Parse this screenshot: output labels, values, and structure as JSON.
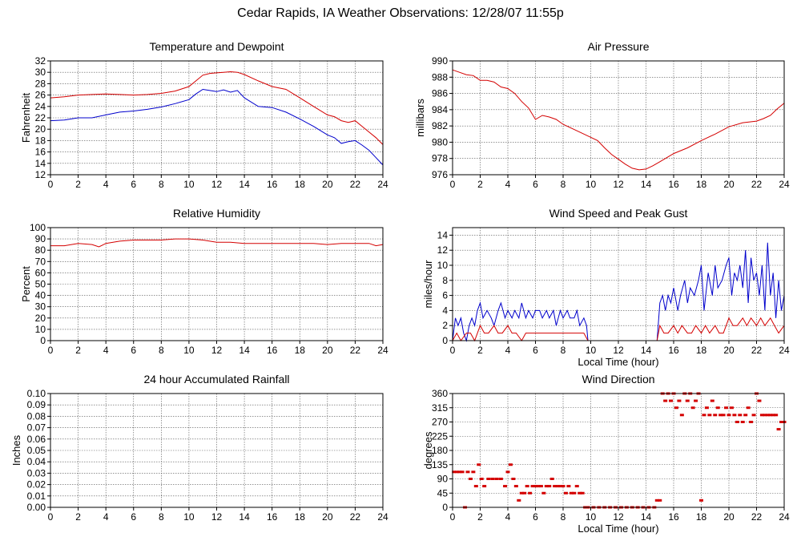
{
  "page": {
    "title": "Cedar Rapids, IA Weather Observations: 12/28/07 11:55p"
  },
  "colors": {
    "red": "#d40000",
    "blue": "#0000cc"
  },
  "chart_data": [
    {
      "id": "temp",
      "type": "line",
      "title": "Temperature and Dewpoint",
      "xlabel": "",
      "ylabel": "Fahrenheit",
      "xlim": [
        0,
        24
      ],
      "ylim": [
        12,
        32
      ],
      "xticks": [
        0,
        2,
        4,
        6,
        8,
        10,
        12,
        14,
        16,
        18,
        20,
        22,
        24
      ],
      "yticks": [
        12,
        14,
        16,
        18,
        20,
        22,
        24,
        26,
        28,
        30,
        32
      ],
      "ytick_labels": [
        "12",
        "14",
        "16",
        "18",
        "20",
        "22",
        "24",
        "26",
        "28",
        "30",
        "32"
      ],
      "grid": true,
      "series": [
        {
          "color": "#d40000",
          "x": [
            0,
            1,
            2,
            3,
            4,
            5,
            6,
            7,
            8,
            9,
            10,
            10.5,
            11,
            11.5,
            12,
            12.5,
            13,
            13.5,
            14,
            15,
            16,
            17,
            18,
            19,
            20,
            20.5,
            21,
            21.5,
            22,
            22.5,
            23,
            23.5,
            24
          ],
          "y": [
            25.5,
            25.7,
            26,
            26.1,
            26.2,
            26.1,
            26,
            26.1,
            26.3,
            26.7,
            27.5,
            28.5,
            29.5,
            29.8,
            29.9,
            30,
            30.1,
            30,
            29.6,
            28.5,
            27.5,
            27,
            25.5,
            24,
            22.5,
            22.2,
            21.5,
            21.2,
            21.5,
            20.5,
            19.5,
            18.5,
            17.3
          ]
        },
        {
          "color": "#0000cc",
          "x": [
            0,
            1,
            2,
            3,
            4,
            5,
            6,
            7,
            8,
            9,
            10,
            10.5,
            11,
            11.5,
            12,
            12.5,
            13,
            13.5,
            14,
            15,
            16,
            17,
            18,
            19,
            20,
            20.5,
            21,
            21.5,
            22,
            22.5,
            23,
            23.5,
            24
          ],
          "y": [
            21.5,
            21.6,
            22,
            22,
            22.5,
            23,
            23.2,
            23.5,
            23.9,
            24.5,
            25.2,
            26.2,
            27,
            26.8,
            26.6,
            26.9,
            26.5,
            26.8,
            25.5,
            24,
            23.8,
            23,
            21.8,
            20.5,
            19,
            18.5,
            17.5,
            17.8,
            18,
            17.2,
            16.3,
            15,
            13.7
          ]
        }
      ]
    },
    {
      "id": "pressure",
      "type": "line",
      "title": "Air Pressure",
      "xlabel": "",
      "ylabel": "millibars",
      "xlim": [
        0,
        24
      ],
      "ylim": [
        976,
        990
      ],
      "xticks": [
        0,
        2,
        4,
        6,
        8,
        10,
        12,
        14,
        16,
        18,
        20,
        22,
        24
      ],
      "yticks": [
        976,
        978,
        980,
        982,
        984,
        986,
        988,
        990
      ],
      "ytick_labels": [
        "976",
        "978",
        "980",
        "982",
        "984",
        "986",
        "988",
        "990"
      ],
      "grid": true,
      "series": [
        {
          "color": "#d40000",
          "x": [
            0,
            0.5,
            1,
            1.5,
            2,
            2.5,
            3,
            3.5,
            4,
            4.5,
            5,
            5.5,
            6,
            6.5,
            7,
            7.5,
            8,
            9,
            10,
            10.5,
            11,
            11.5,
            12,
            12.5,
            13,
            13.5,
            14,
            14.5,
            15,
            16,
            17,
            18,
            19,
            20,
            21,
            22,
            22.5,
            23,
            23.5,
            24
          ],
          "y": [
            988.9,
            988.6,
            988.3,
            988.2,
            987.6,
            987.6,
            987.4,
            986.8,
            986.6,
            986,
            985,
            984.2,
            982.8,
            983.3,
            983.1,
            982.8,
            982.2,
            981.4,
            980.6,
            980.2,
            979.3,
            978.5,
            977.9,
            977.3,
            976.8,
            976.6,
            976.7,
            977.1,
            977.6,
            978.6,
            979.3,
            980.2,
            981,
            981.9,
            982.4,
            982.6,
            982.9,
            983.3,
            984.1,
            984.8
          ]
        }
      ]
    },
    {
      "id": "humidity",
      "type": "line",
      "title": "Relative Humidity",
      "xlabel": "",
      "ylabel": "Percent",
      "xlim": [
        0,
        24
      ],
      "ylim": [
        0,
        100
      ],
      "xticks": [
        0,
        2,
        4,
        6,
        8,
        10,
        12,
        14,
        16,
        18,
        20,
        22,
        24
      ],
      "yticks": [
        0,
        10,
        20,
        30,
        40,
        50,
        60,
        70,
        80,
        90,
        100
      ],
      "ytick_labels": [
        "0",
        "10",
        "20",
        "30",
        "40",
        "50",
        "60",
        "70",
        "80",
        "90",
        "100"
      ],
      "grid": true,
      "series": [
        {
          "color": "#d40000",
          "x": [
            0,
            1,
            2,
            3,
            3.5,
            4,
            5,
            6,
            7,
            8,
            9,
            10,
            11,
            12,
            13,
            14,
            15,
            16,
            17,
            18,
            19,
            20,
            21,
            22,
            23,
            23.5,
            24
          ],
          "y": [
            84,
            84,
            86,
            85,
            83,
            86,
            88,
            89,
            89,
            89,
            90,
            90,
            89,
            87,
            87,
            86,
            86,
            86,
            86,
            86,
            86,
            85,
            86,
            86,
            86,
            84,
            85
          ]
        }
      ]
    },
    {
      "id": "wind",
      "type": "line",
      "title": "Wind Speed and Peak Gust",
      "xlabel": "Local Time (hour)",
      "ylabel": "miles/hour",
      "xlim": [
        0,
        24
      ],
      "ylim": [
        0,
        15
      ],
      "xticks": [
        0,
        2,
        4,
        6,
        8,
        10,
        12,
        14,
        16,
        18,
        20,
        22,
        24
      ],
      "yticks": [
        0,
        2,
        4,
        6,
        8,
        10,
        12,
        14
      ],
      "ytick_labels": [
        "0",
        "2",
        "4",
        "6",
        "8",
        "10",
        "12",
        "14"
      ],
      "grid": true,
      "series": [
        {
          "color": "#0000cc",
          "x": [
            0,
            0.2,
            0.4,
            0.6,
            0.8,
            1,
            1.2,
            1.4,
            1.6,
            1.8,
            2,
            2.2,
            2.5,
            2.8,
            3,
            3.3,
            3.5,
            3.8,
            4,
            4.3,
            4.5,
            4.8,
            5,
            5.3,
            5.5,
            5.8,
            6,
            6.3,
            6.5,
            6.8,
            7,
            7.3,
            7.5,
            7.8,
            8,
            8.3,
            8.5,
            8.8,
            9,
            9.2,
            9.5,
            9.7,
            9.8,
            14.8,
            15,
            15.2,
            15.4,
            15.6,
            15.8,
            16,
            16.3,
            16.5,
            16.8,
            17,
            17.2,
            17.5,
            17.8,
            18,
            18.2,
            18.5,
            18.8,
            19,
            19.2,
            19.5,
            19.8,
            20,
            20.2,
            20.4,
            20.6,
            20.8,
            21,
            21.2,
            21.4,
            21.6,
            21.8,
            22,
            22.2,
            22.4,
            22.6,
            22.8,
            23,
            23.2,
            23.4,
            23.6,
            23.8,
            24
          ],
          "y": [
            0,
            3,
            2,
            3,
            1,
            0,
            2,
            3,
            2,
            4,
            5,
            3,
            4,
            3,
            2,
            4,
            5,
            3,
            4,
            3,
            4,
            3,
            5,
            3,
            4,
            3,
            4,
            4,
            3,
            4,
            3,
            4,
            2,
            4,
            3,
            4,
            3,
            3,
            4,
            2,
            3,
            2,
            0,
            0,
            5,
            6,
            4,
            6,
            5,
            7,
            4,
            6,
            8,
            5,
            7,
            6,
            8,
            10,
            4,
            9,
            6,
            10,
            7,
            8,
            10,
            11,
            6,
            9,
            8,
            10,
            7,
            12,
            5,
            11,
            8,
            9,
            6,
            10,
            4,
            13,
            6,
            9,
            3,
            8,
            4,
            6
          ]
        },
        {
          "color": "#d40000",
          "x": [
            0,
            0.3,
            0.6,
            1,
            1.3,
            1.6,
            2,
            2.3,
            2.6,
            3,
            3.3,
            3.6,
            4,
            4.3,
            4.6,
            5,
            5.3,
            5.6,
            6,
            6.5,
            7,
            7.5,
            8,
            8.5,
            9,
            9.5,
            9.8,
            14.8,
            15,
            15.3,
            15.6,
            16,
            16.3,
            16.6,
            17,
            17.3,
            17.6,
            18,
            18.3,
            18.6,
            19,
            19.3,
            19.6,
            20,
            20.3,
            20.6,
            21,
            21.3,
            21.6,
            22,
            22.3,
            22.6,
            23,
            23.3,
            23.6,
            24
          ],
          "y": [
            0,
            1,
            0,
            1,
            1,
            0,
            2,
            1,
            1,
            2,
            1,
            1,
            2,
            1,
            1,
            0,
            1,
            1,
            1,
            1,
            1,
            1,
            1,
            1,
            1,
            1,
            0,
            0,
            2,
            1,
            1,
            2,
            1,
            2,
            1,
            1,
            2,
            1,
            2,
            1,
            2,
            1,
            1,
            3,
            2,
            2,
            3,
            2,
            3,
            2,
            3,
            2,
            3,
            2,
            1,
            2
          ]
        }
      ]
    },
    {
      "id": "rain",
      "type": "line",
      "title": "24 hour Accumulated Rainfall",
      "xlabel": "",
      "ylabel": "Inches",
      "xlim": [
        0,
        24
      ],
      "ylim": [
        0,
        0.1
      ],
      "xticks": [
        0,
        2,
        4,
        6,
        8,
        10,
        12,
        14,
        16,
        18,
        20,
        22,
        24
      ],
      "yticks": [
        0,
        0.01,
        0.02,
        0.03,
        0.04,
        0.05,
        0.06,
        0.07,
        0.08,
        0.09,
        0.1
      ],
      "ytick_labels": [
        "0.00",
        "0.01",
        "0.02",
        "0.03",
        "0.04",
        "0.05",
        "0.06",
        "0.07",
        "0.08",
        "0.09",
        "0.10"
      ],
      "grid": true,
      "series": [
        {
          "color": "#d40000",
          "x": [
            0,
            24
          ],
          "y": [
            0,
            0
          ]
        }
      ]
    },
    {
      "id": "direction",
      "type": "scatter",
      "title": "Wind Direction",
      "xlabel": "Local Time (hour)",
      "ylabel": "degrees",
      "xlim": [
        0,
        24
      ],
      "ylim": [
        0,
        360
      ],
      "xticks": [
        0,
        2,
        4,
        6,
        8,
        10,
        12,
        14,
        16,
        18,
        20,
        22,
        24
      ],
      "yticks": [
        0,
        45,
        90,
        135,
        180,
        225,
        270,
        315,
        360
      ],
      "ytick_labels": [
        "0",
        "45",
        "90",
        "135",
        "180",
        "225",
        "270",
        "315",
        "360"
      ],
      "grid": true,
      "series": [
        {
          "color": "#d40000",
          "x": [
            0.1,
            0.3,
            0.5,
            0.7,
            0.9,
            1.1,
            1.3,
            1.5,
            1.7,
            1.9,
            2.1,
            2.3,
            2.6,
            2.9,
            3.2,
            3.5,
            3.8,
            4.0,
            4.2,
            4.4,
            4.6,
            4.8,
            5.0,
            5.2,
            5.4,
            5.6,
            5.8,
            6.0,
            6.2,
            6.4,
            6.6,
            6.8,
            7.0,
            7.2,
            7.4,
            7.6,
            7.8,
            8.0,
            8.2,
            8.4,
            8.6,
            8.8,
            9.0,
            9.2,
            9.4,
            9.6,
            9.8,
            10.2,
            10.6,
            11.0,
            11.4,
            11.8,
            12.2,
            12.6,
            13.0,
            13.4,
            13.8,
            14.2,
            14.6,
            14.8,
            15.0,
            15.2,
            15.4,
            15.6,
            15.8,
            16.0,
            16.2,
            16.4,
            16.6,
            16.8,
            17.0,
            17.2,
            17.4,
            17.6,
            17.8,
            18.0,
            18.2,
            18.4,
            18.6,
            18.8,
            19.0,
            19.2,
            19.4,
            19.6,
            19.8,
            20.0,
            20.2,
            20.4,
            20.6,
            20.8,
            21.0,
            21.2,
            21.4,
            21.6,
            21.8,
            22.0,
            22.2,
            22.4,
            22.6,
            22.8,
            23.0,
            23.2,
            23.4,
            23.6,
            23.8,
            24.0
          ],
          "y": [
            112,
            112,
            112,
            112,
            0,
            112,
            90,
            112,
            67,
            135,
            90,
            67,
            90,
            90,
            90,
            90,
            67,
            112,
            135,
            90,
            67,
            22,
            45,
            45,
            67,
            45,
            67,
            67,
            67,
            67,
            45,
            67,
            67,
            90,
            67,
            67,
            67,
            67,
            45,
            67,
            45,
            45,
            67,
            45,
            45,
            0,
            0,
            0,
            0,
            0,
            0,
            0,
            0,
            0,
            0,
            0,
            0,
            0,
            0,
            22,
            22,
            360,
            337,
            360,
            337,
            360,
            315,
            337,
            292,
            360,
            337,
            360,
            315,
            337,
            360,
            22,
            292,
            315,
            292,
            337,
            292,
            315,
            292,
            292,
            315,
            292,
            315,
            292,
            270,
            292,
            270,
            292,
            315,
            270,
            292,
            360,
            337,
            292,
            292,
            292,
            292,
            292,
            292,
            247,
            270,
            270
          ]
        }
      ]
    }
  ]
}
